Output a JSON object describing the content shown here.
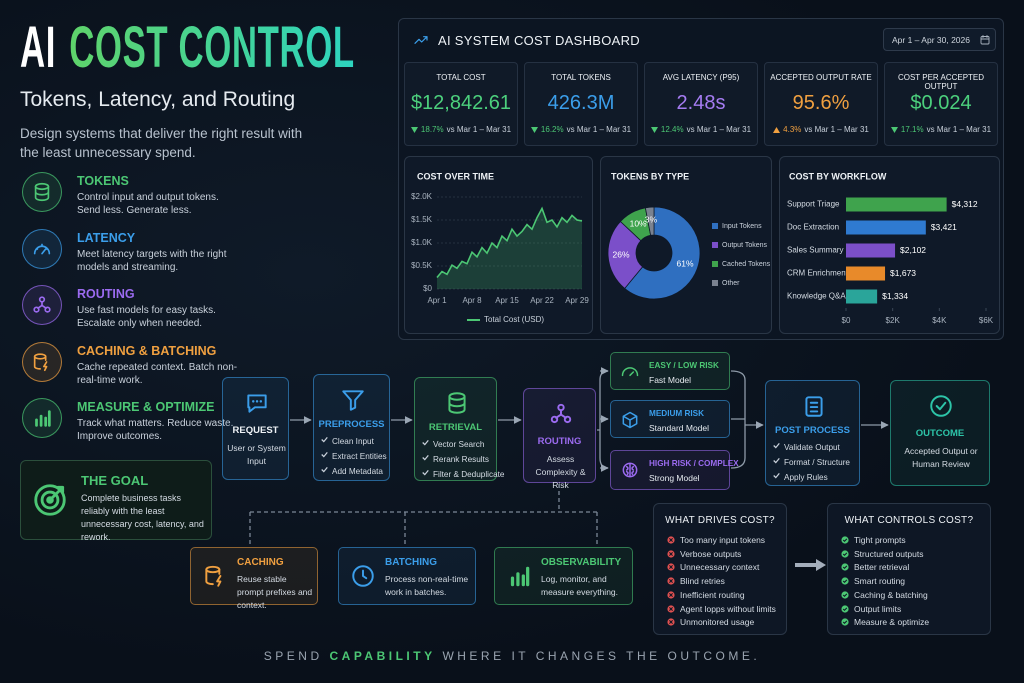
{
  "header": {
    "title_lead": "AI",
    "title_main": "COST CONTROL",
    "subtitle": "Tokens, Latency, and Routing",
    "description": "Design systems that deliver the right result with the least unnecessary spend."
  },
  "pillars": [
    {
      "title": "TOKENS",
      "text": "Control input and output tokens. Send less. Generate less.",
      "color": "#4cc774"
    },
    {
      "title": "LATENCY",
      "text": "Meet latency targets with the right models and streaming.",
      "color": "#3b9eea"
    },
    {
      "title": "ROUTING",
      "text": "Use fast models for easy tasks. Escalate only when needed.",
      "color": "#9b6bf0"
    },
    {
      "title": "CACHING & BATCHING",
      "text": "Cache repeated context. Batch non-real-time work.",
      "color": "#f0a040"
    },
    {
      "title": "MEASURE & OPTIMIZE",
      "text": "Track what matters. Reduce waste. Improve outcomes.",
      "color": "#4cc774"
    }
  ],
  "goal": {
    "title": "THE GOAL",
    "text": "Complete business tasks reliably with the least unnecessary cost, latency, and rework."
  },
  "dashboard": {
    "title": "AI SYSTEM COST DASHBOARD",
    "date_range": "Apr 1 – Apr 30, 2026",
    "kpis": [
      {
        "label": "TOTAL COST",
        "value": "$12,842.61",
        "change": "18.7%",
        "direction": "down",
        "comparison": "vs Mar 1 – Mar 31",
        "color": "#4cd07d"
      },
      {
        "label": "TOTAL TOKENS",
        "value": "426.3M",
        "change": "16.2%",
        "direction": "down",
        "comparison": "vs Mar 1 – Mar 31",
        "color": "#3b9eea"
      },
      {
        "label": "AVG LATENCY (P95)",
        "value": "2.48s",
        "change": "12.4%",
        "direction": "down",
        "comparison": "vs Mar 1 – Mar 31",
        "color": "#a57cf2"
      },
      {
        "label": "ACCEPTED OUTPUT RATE",
        "value": "95.6%",
        "change": "4.3%",
        "direction": "up",
        "comparison": "vs Mar 1 – Mar 31",
        "color": "#f0a040"
      },
      {
        "label": "COST PER ACCEPTED OUTPUT",
        "value": "$0.024",
        "change": "17.1%",
        "direction": "down",
        "comparison": "vs Mar 1 – Mar 31",
        "color": "#4cd07d"
      }
    ]
  },
  "chart_data": [
    {
      "type": "line",
      "title": "COST OVER TIME",
      "categories": [
        "Apr 1",
        null,
        null,
        null,
        null,
        null,
        null,
        "Apr 8",
        null,
        null,
        null,
        null,
        null,
        null,
        "Apr 15",
        null,
        null,
        null,
        null,
        null,
        null,
        "Apr 22",
        null,
        null,
        null,
        null,
        null,
        null,
        "Apr 29",
        null
      ],
      "series": [
        {
          "name": "Total Cost (USD)",
          "color": "#4cc774",
          "values": [
            250,
            380,
            320,
            520,
            450,
            600,
            550,
            800,
            700,
            900,
            780,
            1000,
            900,
            1150,
            1050,
            1300,
            1150,
            1250,
            1400,
            1300,
            1550,
            1750,
            1450,
            1500,
            1350,
            1550,
            1450,
            1600,
            1500,
            1480
          ]
        }
      ],
      "ylim": [
        0,
        2000
      ],
      "yticks": [
        {
          "value": 0,
          "label": "$0"
        },
        {
          "value": 500,
          "label": "$0.5K"
        },
        {
          "value": 1000,
          "label": "$1.0K"
        },
        {
          "value": 1500,
          "label": "$1.5K"
        },
        {
          "value": 2000,
          "label": "$2.0K"
        }
      ],
      "grid": true
    },
    {
      "type": "pie",
      "title": "TOKENS BY TYPE",
      "categories": [
        "Input Tokens",
        "Output Tokens",
        "Cached Tokens",
        "Other"
      ],
      "values": [
        61,
        26,
        10,
        3
      ],
      "value_labels": [
        "61%",
        "26%",
        "10%",
        "3%"
      ],
      "colors": [
        "#2f6fc0",
        "#7b4fc9",
        "#3fa34d",
        "#7a8290"
      ],
      "legend": "right"
    },
    {
      "type": "bar",
      "orientation": "horizontal",
      "title": "COST BY WORKFLOW",
      "categories": [
        "Support Triage",
        "Doc Extraction",
        "Sales Summary",
        "CRM Enrichment",
        "Knowledge Q&A"
      ],
      "values": [
        4312,
        3421,
        2102,
        1673,
        1334
      ],
      "value_labels": [
        "$4,312",
        "$3,421",
        "$2,102",
        "$1,673",
        "$1,334"
      ],
      "colors": [
        "#3fa34d",
        "#2f7ad0",
        "#7b4fc9",
        "#e88a2a",
        "#2aa59a"
      ],
      "xlim": [
        0,
        6000
      ],
      "xticks": [
        {
          "value": 0,
          "label": "$0"
        },
        {
          "value": 2000,
          "label": "$2K"
        },
        {
          "value": 4000,
          "label": "$4K"
        },
        {
          "value": 6000,
          "label": "$6K"
        }
      ]
    }
  ],
  "flow": {
    "steps": [
      {
        "title": "REQUEST",
        "text": "User or System Input",
        "color": "#3b9eea"
      },
      {
        "title": "PREPROCESS",
        "items": [
          "Clean Input",
          "Extract Entities",
          "Add Metadata"
        ],
        "color": "#3b9eea"
      },
      {
        "title": "RETRIEVAL",
        "items": [
          "Vector Search",
          "Rerank Results",
          "Filter & Deduplicate"
        ],
        "color": "#4cc774"
      },
      {
        "title": "ROUTING",
        "text": "Assess Complexity & Risk",
        "color": "#9b6bf0"
      },
      {
        "title": "POST PROCESS",
        "items": [
          "Validate Output",
          "Format / Structure",
          "Apply Rules"
        ],
        "color": "#3b9eea"
      },
      {
        "title": "OUTCOME",
        "text": "Accepted Output or Human Review",
        "color": "#2dc4a8"
      }
    ],
    "routes": [
      {
        "title": "EASY / LOW RISK",
        "model": "Fast Model",
        "color": "#4cc774"
      },
      {
        "title": "MEDIUM RISK",
        "model": "Standard Model",
        "color": "#3b9eea"
      },
      {
        "title": "HIGH RISK / COMPLEX",
        "model": "Strong Model",
        "color": "#9b6bf0"
      }
    ],
    "supports": [
      {
        "title": "CACHING",
        "text": "Reuse stable prompt prefixes and context.",
        "color": "#f0a040"
      },
      {
        "title": "BATCHING",
        "text": "Process non-real-time work in batches.",
        "color": "#3b9eea"
      },
      {
        "title": "OBSERVABILITY",
        "text": "Log, monitor, and measure everything.",
        "color": "#4cc774"
      }
    ]
  },
  "cost_drivers": {
    "title": "WHAT DRIVES COST?",
    "items": [
      "Too many input tokens",
      "Verbose outputs",
      "Unnecessary context",
      "Blind retries",
      "Inefficient routing",
      "Agent lopps without limits",
      "Unmonitored usage"
    ]
  },
  "cost_controls": {
    "title": "WHAT CONTROLS COST?",
    "items": [
      "Tight prompts",
      "Structured outputs",
      "Better retrieval",
      "Smart routing",
      "Caching & batching",
      "Output limits",
      "Measure & optimize"
    ]
  },
  "footer": {
    "lead": "SPEND",
    "highlight": "CAPABILITY",
    "tail": "WHERE IT CHANGES THE OUTCOME."
  }
}
